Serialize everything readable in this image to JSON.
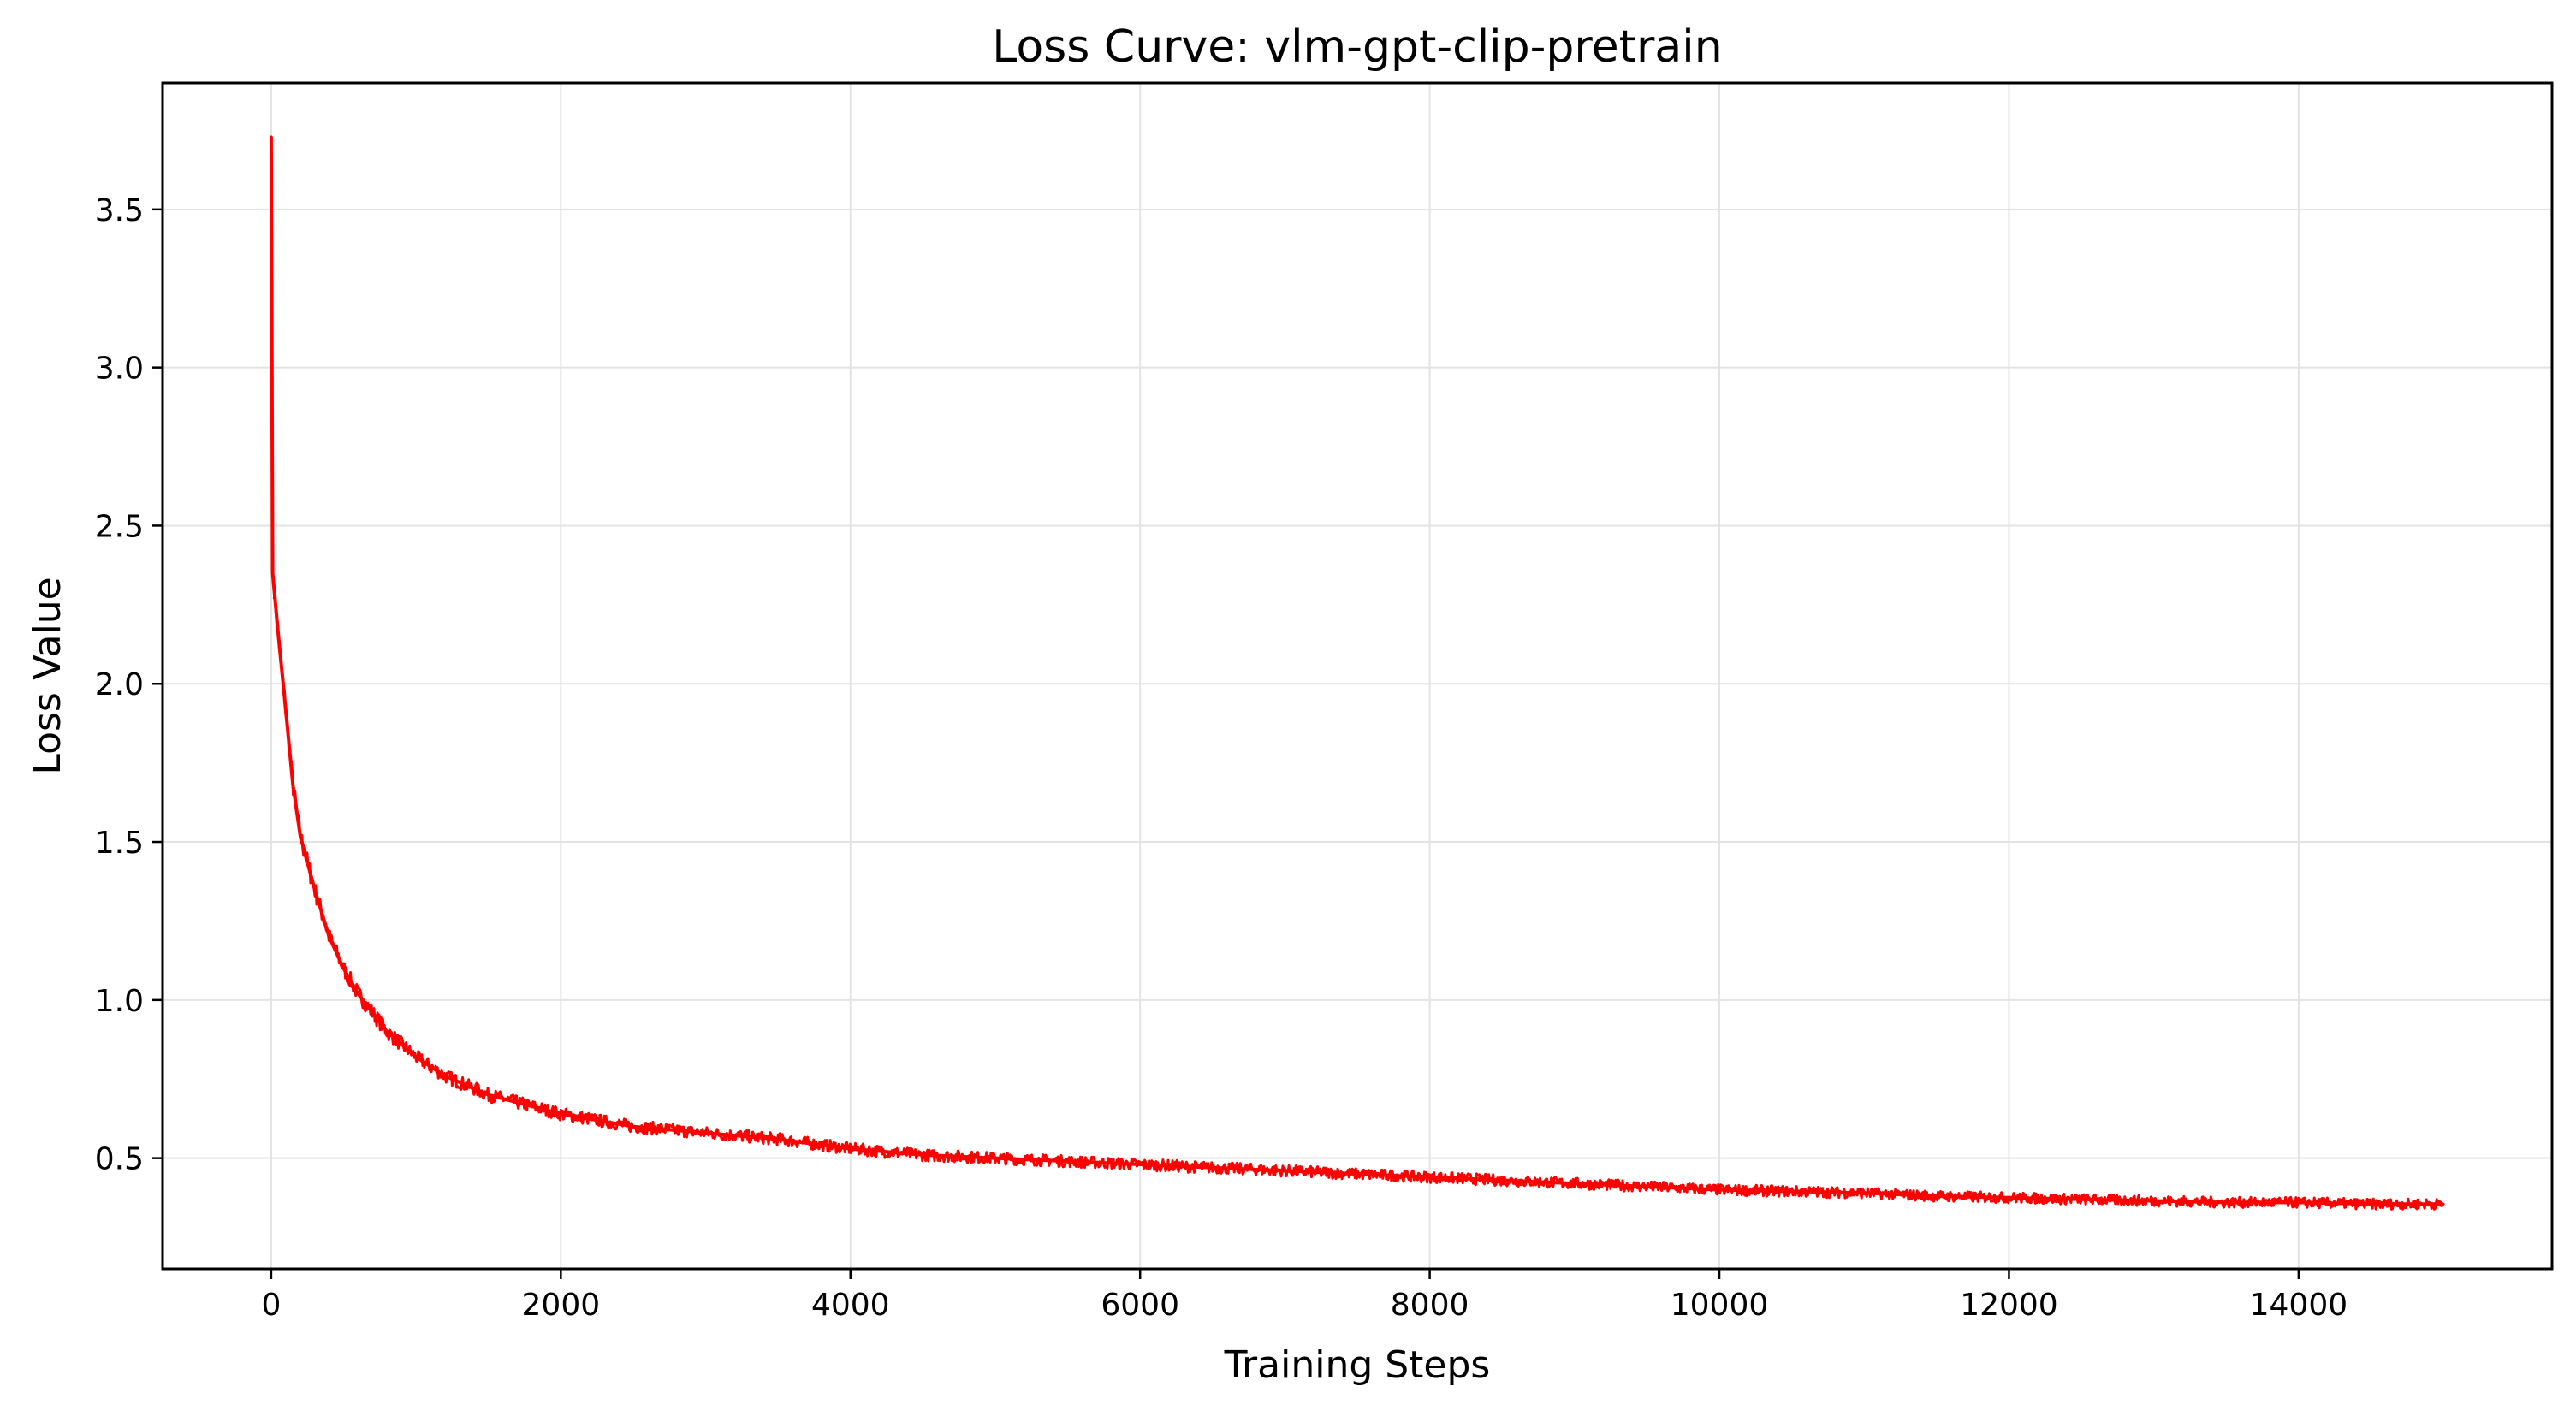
{
  "chart_data": {
    "type": "line",
    "title": "Loss Curve: vlm-gpt-clip-pretrain",
    "xlabel": "Training Steps",
    "ylabel": "Loss Value",
    "xlim": [
      -750,
      15750
    ],
    "ylim": [
      0.15,
      3.9
    ],
    "xticks": [
      0,
      2000,
      4000,
      6000,
      8000,
      10000,
      12000,
      14000
    ],
    "yticks": [
      0.5,
      1.0,
      1.5,
      2.0,
      2.5,
      3.0,
      3.5
    ],
    "xtick_labels": [
      "0",
      "2000",
      "4000",
      "6000",
      "8000",
      "10000",
      "12000",
      "14000"
    ],
    "ytick_labels": [
      "0.5",
      "1.0",
      "1.5",
      "2.0",
      "2.5",
      "3.0",
      "3.5"
    ],
    "grid": true,
    "legend": "none",
    "series": [
      {
        "color": "#ff0000",
        "x": [
          0,
          10,
          20,
          50,
          100,
          150,
          200,
          300,
          400,
          500,
          600,
          700,
          800,
          1000,
          1200,
          1500,
          2000,
          2500,
          3000,
          3500,
          4000,
          4500,
          5000,
          5500,
          6000,
          6500,
          7000,
          7500,
          8000,
          8500,
          9000,
          9500,
          10000,
          10500,
          11000,
          11500,
          12000,
          12500,
          13000,
          13500,
          14000,
          14500,
          15000
        ],
        "y": [
          3.73,
          2.35,
          2.3,
          2.15,
          1.92,
          1.68,
          1.52,
          1.35,
          1.2,
          1.1,
          1.02,
          0.96,
          0.9,
          0.82,
          0.76,
          0.7,
          0.64,
          0.6,
          0.58,
          0.56,
          0.53,
          0.51,
          0.5,
          0.49,
          0.48,
          0.47,
          0.46,
          0.45,
          0.44,
          0.43,
          0.42,
          0.41,
          0.4,
          0.395,
          0.39,
          0.38,
          0.375,
          0.37,
          0.365,
          0.36,
          0.36,
          0.355,
          0.355
        ]
      }
    ]
  }
}
